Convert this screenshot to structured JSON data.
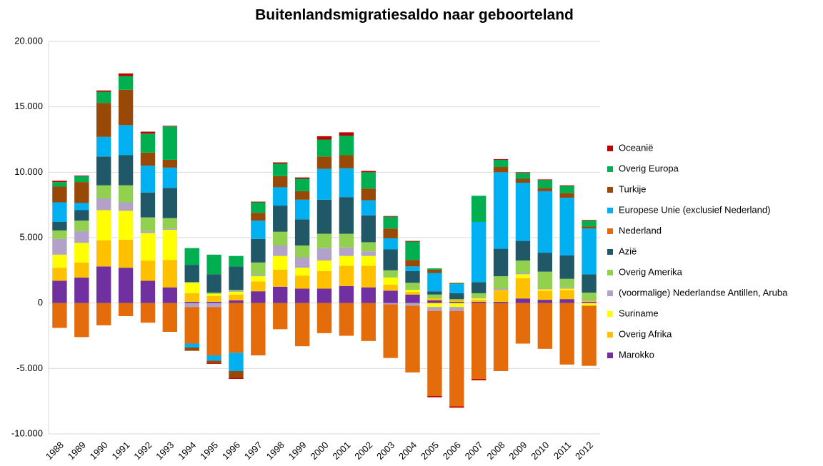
{
  "chart_data": {
    "type": "stacked-bar",
    "title": "Buitenlandsmigratiesaldo naar geboorteland",
    "categories": [
      "1988",
      "1989",
      "1990",
      "1991",
      "1992",
      "1993",
      "1994",
      "1995",
      "1996",
      "1997",
      "1998",
      "1999",
      "2000",
      "2001",
      "2002",
      "2003",
      "2004",
      "2005",
      "2006",
      "2007",
      "2008",
      "2009",
      "2010",
      "2011",
      "2012"
    ],
    "ylim": [
      -10000,
      20000
    ],
    "yticks": [
      {
        "value": -10000,
        "label": "-10.000"
      },
      {
        "value": -5000,
        "label": "-5.000"
      },
      0,
      {
        "value": 5000,
        "label": "5.000"
      },
      {
        "value": 10000,
        "label": "10.000"
      },
      {
        "value": 15000,
        "label": "15.000"
      },
      {
        "value": 20000,
        "label": "20.000"
      }
    ],
    "grid": true,
    "legend": "right",
    "series": [
      {
        "name": "Marokko",
        "color": "#7030a0",
        "values": [
          1700,
          1950,
          2800,
          2700,
          1700,
          1200,
          100,
          100,
          200,
          900,
          1250,
          1100,
          1100,
          1300,
          1200,
          950,
          650,
          200,
          100,
          100,
          100,
          350,
          250,
          300,
          100
        ]
      },
      {
        "name": "Overig Afrika",
        "color": "#ffc000",
        "values": [
          1000,
          1150,
          2000,
          2150,
          1550,
          2100,
          650,
          450,
          450,
          750,
          1300,
          1000,
          1350,
          1550,
          1650,
          450,
          200,
          150,
          100,
          150,
          900,
          1550,
          700,
          700,
          50
        ]
      },
      {
        "name": "Suriname",
        "color": "#ffff00",
        "values": [
          1000,
          1500,
          2300,
          2200,
          2100,
          2300,
          800,
          150,
          200,
          400,
          1050,
          600,
          800,
          750,
          750,
          550,
          150,
          -300,
          -300,
          100,
          0,
          300,
          100,
          100,
          -200
        ]
      },
      {
        "name": "(voormalige) Nederlandse Antillen, Aruba",
        "color": "#b3a2c7",
        "values": [
          1200,
          900,
          900,
          650,
          150,
          100,
          -300,
          -300,
          50,
          100,
          800,
          800,
          950,
          650,
          350,
          -100,
          -200,
          -300,
          -300,
          50,
          100,
          100,
          50,
          100,
          100
        ]
      },
      {
        "name": "Overig Amerika",
        "color": "#92d050",
        "values": [
          650,
          800,
          1000,
          1300,
          1050,
          800,
          50,
          100,
          100,
          950,
          1050,
          900,
          1100,
          1050,
          700,
          550,
          550,
          300,
          100,
          350,
          950,
          950,
          1300,
          650,
          550
        ]
      },
      {
        "name": "Azië",
        "color": "#215868",
        "values": [
          650,
          800,
          2200,
          2300,
          1900,
          2300,
          1300,
          1400,
          1800,
          1800,
          2000,
          2000,
          2600,
          2800,
          2050,
          1600,
          900,
          250,
          450,
          850,
          2100,
          1500,
          1450,
          1800,
          1400
        ]
      },
      {
        "name": "Nederland",
        "color": "#e46c0a",
        "values": [
          -1900,
          -2600,
          -1700,
          -1000,
          -1500,
          -2200,
          -2800,
          -3700,
          -3800,
          -4000,
          -2000,
          -3300,
          -2300,
          -2500,
          -2900,
          -4100,
          -5100,
          -6500,
          -7300,
          -5800,
          -5200,
          -3100,
          -3500,
          -4700,
          -4600
        ]
      },
      {
        "name": "Europese Unie (exclusief Nederland)",
        "color": "#00b0f0",
        "values": [
          1500,
          550,
          1500,
          2300,
          2050,
          1550,
          -300,
          -400,
          -1400,
          1400,
          1400,
          1500,
          2350,
          2200,
          1150,
          850,
          350,
          1400,
          700,
          4600,
          5850,
          4450,
          4700,
          4400,
          3500
        ]
      },
      {
        "name": "Turkije",
        "color": "#984807",
        "values": [
          1200,
          1600,
          2600,
          2700,
          1000,
          600,
          -250,
          -200,
          -500,
          600,
          850,
          650,
          950,
          1000,
          900,
          750,
          500,
          250,
          50,
          0,
          400,
          300,
          250,
          350,
          150
        ]
      },
      {
        "name": "Overig Europa",
        "color": "#00b050",
        "values": [
          350,
          450,
          850,
          1050,
          1450,
          2550,
          1300,
          1500,
          800,
          800,
          950,
          950,
          1300,
          1500,
          1250,
          900,
          1400,
          100,
          50,
          2000,
          550,
          450,
          600,
          550,
          450
        ]
      },
      {
        "name": "Oceanië",
        "color": "#c00000",
        "values": [
          100,
          50,
          100,
          200,
          150,
          50,
          0,
          -50,
          -100,
          50,
          100,
          100,
          250,
          250,
          100,
          50,
          50,
          -100,
          -100,
          -100,
          50,
          50,
          50,
          50,
          50
        ]
      }
    ]
  }
}
